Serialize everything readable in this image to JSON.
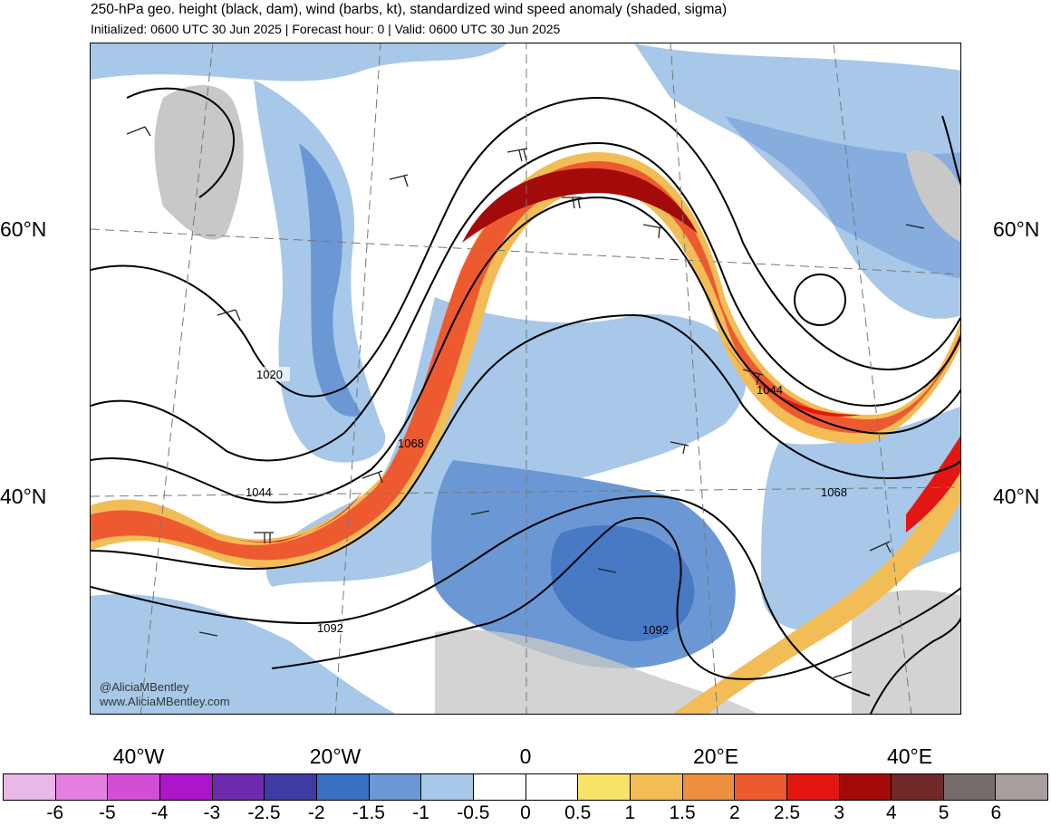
{
  "header": {
    "title": "250-hPa geo. height (black, dam), wind (barbs, kt), standardized wind speed anomaly (shaded, sigma)",
    "subtitle": "Initialized: 0600 UTC 30 Jun 2025 | Forecast hour: 0 | Valid: 0600 UTC 30 Jun 2025"
  },
  "map": {
    "lat_labels": [
      "60°N",
      "40°N"
    ],
    "lon_labels": [
      "40°W",
      "20°W",
      "0",
      "20°E",
      "40°E"
    ],
    "contour_labels": [
      "1020",
      "1044",
      "1068",
      "1092",
      "1044",
      "1068",
      "1092"
    ],
    "credits": [
      "@AliciaMBentley",
      "www.AliciaMBentley.com"
    ]
  },
  "colorbar": {
    "ticks": [
      "-6",
      "-5",
      "-4",
      "-3",
      "-2.5",
      "-2",
      "-1.5",
      "-1",
      "-0.5",
      "0",
      "0.5",
      "1",
      "1.5",
      "2",
      "2.5",
      "3",
      "4",
      "5",
      "6"
    ],
    "colors": [
      "#e9b8e8",
      "#e27fe0",
      "#d24ed3",
      "#ab16c9",
      "#6e2aaf",
      "#3e3ca3",
      "#3b6fc0",
      "#6b98d4",
      "#a7c8e8",
      "#ffffff",
      "#ffffff",
      "#f7e36a",
      "#f2bd57",
      "#ef9040",
      "#ee5a30",
      "#e41612",
      "#a30b0b",
      "#6f2a28",
      "#766c6c",
      "#a99e9e"
    ]
  }
}
